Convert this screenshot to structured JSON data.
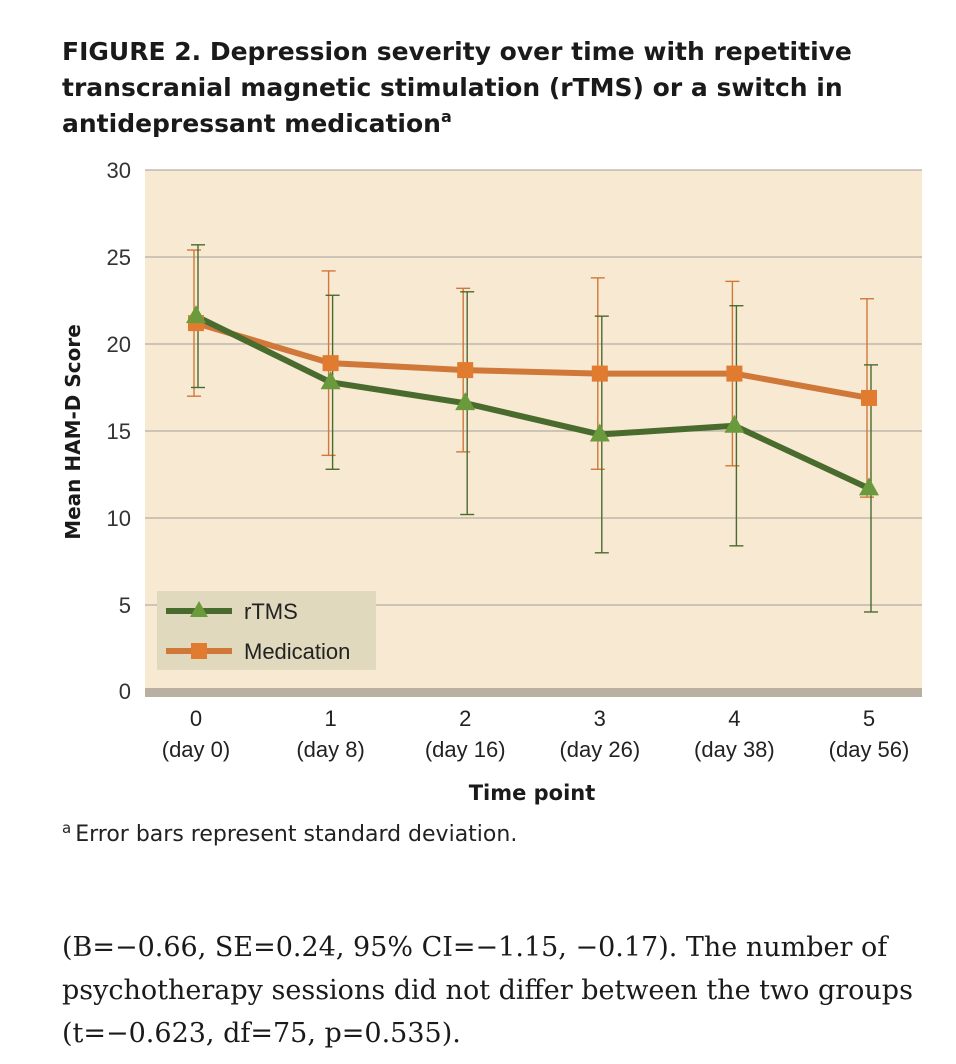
{
  "figure": {
    "title": "FIGURE 2.  Depression severity over time with repetitive transcranial magnetic stimulation (rTMS) or a switch in antidepressant medication",
    "title_superscript": "a",
    "footnote_marker": "a",
    "footnote": "Error bars represent standard deviation."
  },
  "chart_data": {
    "type": "line",
    "title": "Depression severity over time with repetitive transcranial magnetic stimulation (rTMS) or a switch in antidepressant medication",
    "xlabel": "Time point",
    "ylabel": "Mean HAM-D Score",
    "ylim": [
      0,
      30
    ],
    "yticks": [
      "0",
      "5",
      "10",
      "15",
      "20",
      "25",
      "30"
    ],
    "categories": [
      {
        "tick": "0",
        "sub": "(day 0)"
      },
      {
        "tick": "1",
        "sub": "(day 8)"
      },
      {
        "tick": "2",
        "sub": "(day 16)"
      },
      {
        "tick": "3",
        "sub": "(day 26)"
      },
      {
        "tick": "4",
        "sub": "(day 38)"
      },
      {
        "tick": "5",
        "sub": "(day 56)"
      }
    ],
    "grid": true,
    "legend_position": "bottom-left",
    "series": [
      {
        "name": "rTMS",
        "color": "#4a6b2e",
        "marker": "triangle",
        "marker_color": "#6b9a3c",
        "values": [
          21.6,
          17.8,
          16.6,
          14.8,
          15.3,
          11.7
        ],
        "err_upper": [
          25.7,
          22.8,
          23.0,
          21.6,
          22.2,
          18.8
        ],
        "err_lower": [
          17.5,
          12.8,
          10.2,
          8.0,
          8.4,
          4.6
        ]
      },
      {
        "name": "Medication",
        "color": "#d0783a",
        "marker": "square",
        "marker_color": "#e07b30",
        "values": [
          21.2,
          18.9,
          18.5,
          18.3,
          18.3,
          16.9
        ],
        "err_upper": [
          25.4,
          24.2,
          23.2,
          23.8,
          23.6,
          22.6
        ],
        "err_lower": [
          17.0,
          13.6,
          13.8,
          12.8,
          13.0,
          11.2
        ]
      }
    ]
  },
  "body_text": {
    "line1": "(B=−0.66, SE=0.24, 95% CI=−1.15, −0.17). The number of",
    "line2": "psychotherapy sessions did not differ between the two groups",
    "line3": "(t=−0.623, df=75, p=0.535)."
  }
}
